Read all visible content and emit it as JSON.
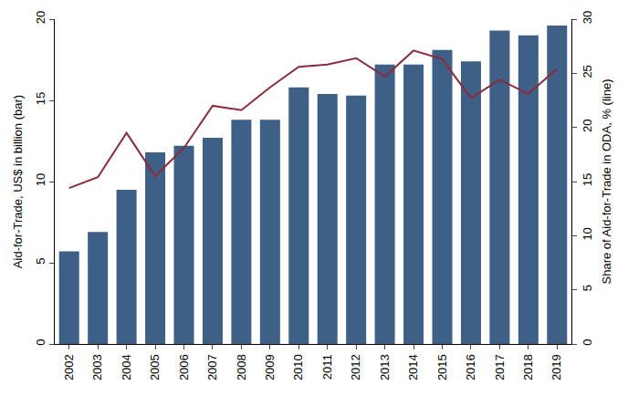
{
  "chart_data": {
    "type": "bar",
    "categories": [
      "2002",
      "2003",
      "2004",
      "2005",
      "2006",
      "2007",
      "2008",
      "2009",
      "2010",
      "2011",
      "2012",
      "2013",
      "2014",
      "2015",
      "2016",
      "2017",
      "2018",
      "2019"
    ],
    "x_label": null,
    "y_label": "Aid-for-Trade, US$ in billion (bar)",
    "y2_label": "Share of Aid-for-Trade in ODA, % (line)",
    "series": [
      {
        "type": "bar",
        "color": "#3e6086",
        "values": [
          5.7,
          6.9,
          9.5,
          11.8,
          12.2,
          12.7,
          13.8,
          13.8,
          15.8,
          15.4,
          15.3,
          17.2,
          17.2,
          18.1,
          17.4,
          19.3,
          19.0,
          19.6
        ]
      },
      {
        "type": "line",
        "axis": "y2",
        "color": "#8b2c3c",
        "values": [
          14.4,
          15.4,
          19.5,
          15.5,
          18.1,
          22.0,
          21.6,
          23.7,
          25.6,
          25.8,
          26.4,
          24.7,
          27.1,
          26.3,
          22.7,
          24.4,
          23.1,
          25.4
        ]
      }
    ],
    "ylim": [
      0,
      20
    ],
    "yticks": [
      0,
      5,
      10,
      15,
      20
    ],
    "y2lim": [
      0,
      30
    ],
    "y2ticks": [
      0,
      5,
      10,
      15,
      20,
      25,
      30
    ],
    "grid": false
  }
}
